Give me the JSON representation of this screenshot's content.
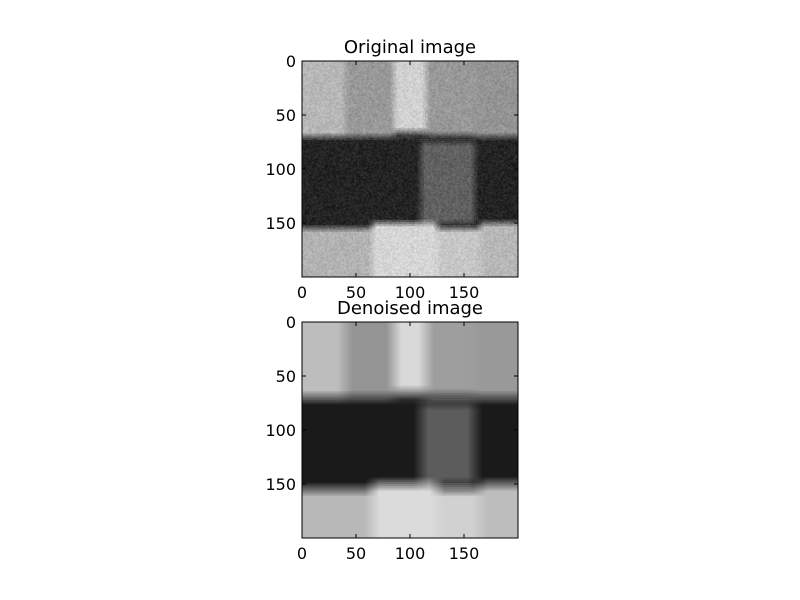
{
  "chart_data": [
    {
      "type": "heatmap",
      "title": "Original image",
      "colormap": "gray",
      "xlim": [
        0,
        200
      ],
      "ylim": [
        200,
        0
      ],
      "x_ticks": [
        0,
        50,
        100,
        150
      ],
      "y_ticks": [
        0,
        50,
        100,
        150
      ],
      "x_tick_labels": [
        "0",
        "50",
        "100",
        "150"
      ],
      "y_tick_labels": [
        "0",
        "50",
        "100",
        "150"
      ],
      "noise": 0.07,
      "regions": [
        {
          "x": [
            0,
            40
          ],
          "y": [
            0,
            70
          ],
          "intensity": 0.72
        },
        {
          "x": [
            40,
            85
          ],
          "y": [
            0,
            75
          ],
          "intensity": 0.6
        },
        {
          "x": [
            85,
            115
          ],
          "y": [
            0,
            65
          ],
          "intensity": 0.82
        },
        {
          "x": [
            115,
            160
          ],
          "y": [
            0,
            68
          ],
          "intensity": 0.6
        },
        {
          "x": [
            160,
            200
          ],
          "y": [
            0,
            70
          ],
          "intensity": 0.58
        },
        {
          "x": [
            0,
            200
          ],
          "y": [
            70,
            155
          ],
          "intensity": 0.14
        },
        {
          "x": [
            110,
            160
          ],
          "y": [
            75,
            150
          ],
          "intensity": 0.38
        },
        {
          "x": [
            0,
            65
          ],
          "y": [
            155,
            200
          ],
          "intensity": 0.7
        },
        {
          "x": [
            65,
            125
          ],
          "y": [
            150,
            200
          ],
          "intensity": 0.84
        },
        {
          "x": [
            125,
            165
          ],
          "y": [
            155,
            200
          ],
          "intensity": 0.78
        },
        {
          "x": [
            165,
            200
          ],
          "y": [
            150,
            200
          ],
          "intensity": 0.72
        }
      ]
    },
    {
      "type": "heatmap",
      "title": "Denoised image",
      "colormap": "gray",
      "xlim": [
        0,
        200
      ],
      "ylim": [
        200,
        0
      ],
      "x_ticks": [
        0,
        50,
        100,
        150
      ],
      "y_ticks": [
        0,
        50,
        100,
        150
      ],
      "x_tick_labels": [
        "0",
        "50",
        "100",
        "150"
      ],
      "y_tick_labels": [
        "0",
        "50",
        "100",
        "150"
      ],
      "noise": 0,
      "regions": [
        {
          "x": [
            0,
            40
          ],
          "y": [
            0,
            70
          ],
          "intensity": 0.74
        },
        {
          "x": [
            40,
            85
          ],
          "y": [
            0,
            75
          ],
          "intensity": 0.58
        },
        {
          "x": [
            85,
            115
          ],
          "y": [
            0,
            65
          ],
          "intensity": 0.85
        },
        {
          "x": [
            115,
            160
          ],
          "y": [
            0,
            68
          ],
          "intensity": 0.62
        },
        {
          "x": [
            160,
            200
          ],
          "y": [
            0,
            70
          ],
          "intensity": 0.6
        },
        {
          "x": [
            0,
            200
          ],
          "y": [
            70,
            155
          ],
          "intensity": 0.1
        },
        {
          "x": [
            110,
            160
          ],
          "y": [
            75,
            150
          ],
          "intensity": 0.36
        },
        {
          "x": [
            0,
            65
          ],
          "y": [
            155,
            200
          ],
          "intensity": 0.72
        },
        {
          "x": [
            65,
            125
          ],
          "y": [
            150,
            200
          ],
          "intensity": 0.86
        },
        {
          "x": [
            125,
            165
          ],
          "y": [
            155,
            200
          ],
          "intensity": 0.82
        },
        {
          "x": [
            165,
            200
          ],
          "y": [
            150,
            200
          ],
          "intensity": 0.74
        }
      ]
    }
  ]
}
